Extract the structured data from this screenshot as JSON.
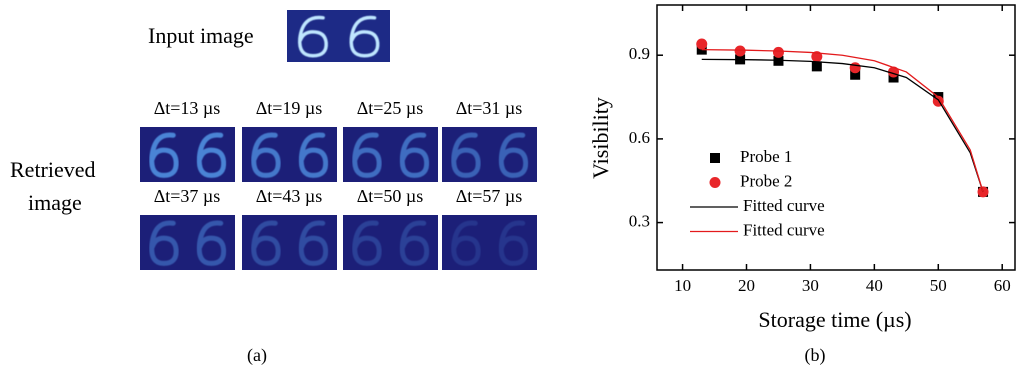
{
  "panel_a": {
    "input_label": "Input image",
    "retrieved_label": [
      "Retrieved",
      "image"
    ],
    "times": [
      "Δt=13 µs",
      "Δt=19 µs",
      "Δt=25 µs",
      "Δt=31 µs",
      "Δt=37 µs",
      "Δt=43 µs",
      "Δt=50 µs",
      "Δt=57 µs"
    ],
    "caption": "(a)"
  },
  "chart_data": {
    "type": "scatter",
    "xlabel": "Storage time (µs)",
    "ylabel": "Visibility",
    "caption": "(b)",
    "xlim": [
      6,
      62
    ],
    "xticks": [
      10,
      20,
      30,
      40,
      50,
      60
    ],
    "ylim": [
      0.13,
      1.08
    ],
    "yticks": [
      0.3,
      0.6,
      0.9
    ],
    "series": [
      {
        "name": "Probe 1",
        "color": "#000000",
        "marker": "square",
        "x": [
          13,
          19,
          25,
          31,
          37,
          43,
          50,
          57
        ],
        "values": [
          0.92,
          0.885,
          0.88,
          0.86,
          0.83,
          0.82,
          0.75,
          0.41
        ]
      },
      {
        "name": "Probe 2",
        "color": "#e8262a",
        "marker": "circle",
        "x": [
          13,
          19,
          25,
          31,
          37,
          43,
          50,
          57
        ],
        "values": [
          0.94,
          0.915,
          0.91,
          0.895,
          0.855,
          0.84,
          0.735,
          0.41
        ]
      },
      {
        "name": "Fitted curve",
        "color": "#000000",
        "marker": "line",
        "x": [
          13,
          20,
          25,
          30,
          35,
          40,
          45,
          50,
          55,
          57
        ],
        "values": [
          0.885,
          0.884,
          0.882,
          0.878,
          0.87,
          0.855,
          0.82,
          0.74,
          0.55,
          0.41
        ]
      },
      {
        "name": "Fitted curve",
        "color": "#e31a1c",
        "marker": "line",
        "x": [
          13,
          20,
          25,
          30,
          35,
          40,
          45,
          50,
          55,
          57
        ],
        "values": [
          0.92,
          0.918,
          0.915,
          0.91,
          0.9,
          0.88,
          0.84,
          0.75,
          0.56,
          0.41
        ]
      }
    ]
  }
}
